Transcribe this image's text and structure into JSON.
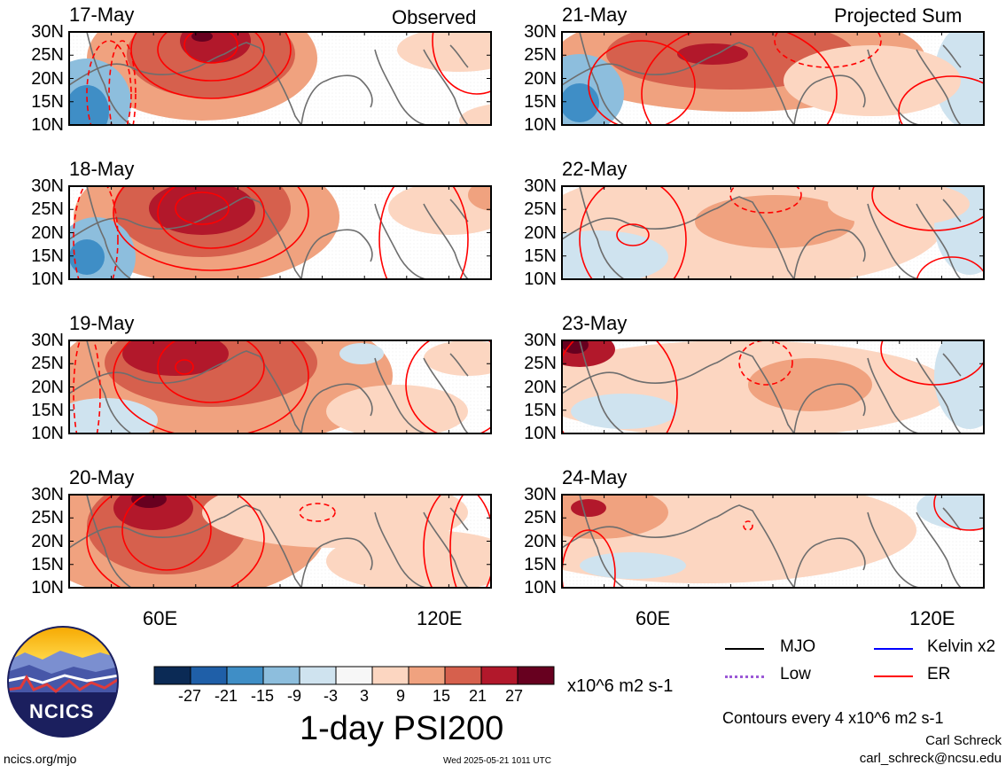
{
  "headers": {
    "left": "Observed",
    "right": "Projected Sum"
  },
  "panels_left": [
    {
      "date": "17-May"
    },
    {
      "date": "18-May"
    },
    {
      "date": "19-May"
    },
    {
      "date": "20-May"
    }
  ],
  "panels_right": [
    {
      "date": "21-May"
    },
    {
      "date": "22-May"
    },
    {
      "date": "23-May"
    },
    {
      "date": "24-May"
    }
  ],
  "lat_labels": [
    "30N",
    "25N",
    "20N",
    "15N",
    "10N"
  ],
  "lon_labels": [
    "60E",
    "120E"
  ],
  "colorbar": {
    "ticks": [
      "-27",
      "-21",
      "-15",
      "-9",
      "-3",
      "3",
      "9",
      "15",
      "21",
      "27"
    ],
    "colors": [
      "#0b2a55",
      "#1f5fa8",
      "#3f8ec6",
      "#8dbedd",
      "#cfe3ef",
      "#f7f7f7",
      "#fcd6c1",
      "#f0a27f",
      "#d6604d",
      "#b2182b",
      "#67001f"
    ],
    "units": "x10^6 m2 s-1"
  },
  "title": "1-day PSI200",
  "legend": {
    "mjo": "MJO",
    "kelvin": "Kelvin x2",
    "low": "Low",
    "er": "ER",
    "colors": {
      "mjo": "#000000",
      "kelvin": "#0000ff",
      "low": "#9b59d6",
      "er": "#ff0000"
    }
  },
  "contours_note": "Contours every 4 x10^6 m2 s-1",
  "author": "Carl Schreck",
  "email": "carl_schreck@ncsu.edu",
  "site": "ncics.org/mjo",
  "timestamp": "Wed 2025-05-21 1011 UTC",
  "logo_text": "NCICS"
}
